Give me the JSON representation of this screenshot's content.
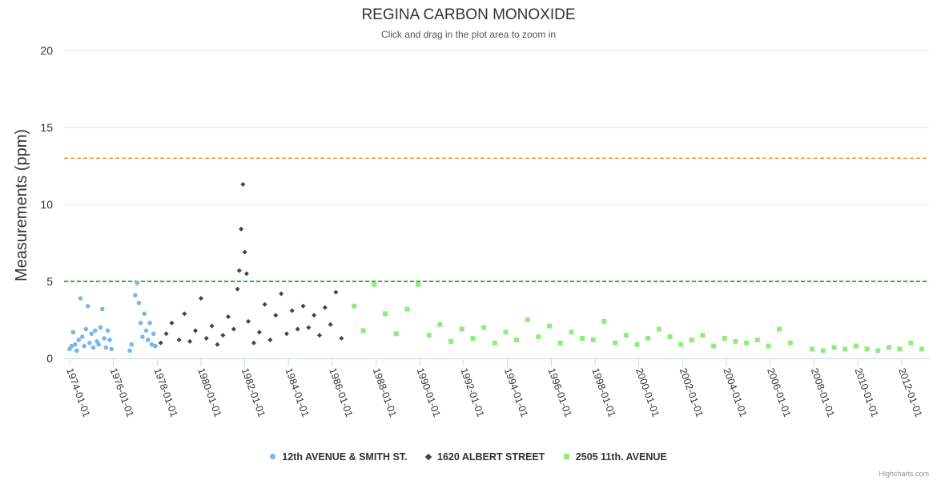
{
  "header": {
    "title": "REGINA CARBON MONOXIDE",
    "subtitle": "Click and drag in the plot area to zoom in"
  },
  "credit": "Highcharts.com",
  "chart_data": {
    "type": "scatter",
    "title": "REGINA CARBON MONOXIDE",
    "subtitle": "Click and drag in the plot area to zoom in",
    "xlabel": "",
    "ylabel": "Measurements (ppm)",
    "ylim": [
      0,
      20
    ],
    "yticks": [
      0,
      5,
      10,
      15,
      20
    ],
    "xlim": [
      "1973-10-01",
      "2013-04-01"
    ],
    "xticks": [
      "1974-01-01",
      "1976-01-01",
      "1978-01-01",
      "1980-01-01",
      "1982-01-01",
      "1984-01-01",
      "1986-01-01",
      "1988-01-01",
      "1990-01-01",
      "1992-01-01",
      "1994-01-01",
      "1996-01-01",
      "1998-01-01",
      "2000-01-01",
      "2002-01-01",
      "2004-01-01",
      "2006-01-01",
      "2008-01-01",
      "2010-01-01",
      "2012-01-01"
    ],
    "grid": true,
    "legend_position": "bottom-center",
    "reference_lines": [
      {
        "y": 13,
        "color": "#e3a21a",
        "style": "dashed"
      },
      {
        "y": 5,
        "color": "#1e7b1e",
        "style": "dashed"
      }
    ],
    "series": [
      {
        "name": "12th AVENUE & SMITH ST.",
        "color": "#7cb5ec",
        "marker": "circle",
        "x": [
          "1974-01-01",
          "1974-02-01",
          "1974-03-01",
          "1974-04-01",
          "1974-05-01",
          "1974-06-01",
          "1974-07-01",
          "1974-08-01",
          "1974-09-01",
          "1974-10-01",
          "1974-11-01",
          "1974-12-01",
          "1975-01-01",
          "1975-02-01",
          "1975-03-01",
          "1975-04-01",
          "1975-05-01",
          "1975-06-01",
          "1975-07-01",
          "1975-08-01",
          "1975-09-01",
          "1975-10-01",
          "1975-11-01",
          "1975-12-01",
          "1976-10-01",
          "1976-11-01",
          "1977-01-01",
          "1977-02-01",
          "1977-03-01",
          "1977-04-01",
          "1977-05-01",
          "1977-06-01",
          "1977-07-01",
          "1977-08-01",
          "1977-09-01",
          "1977-10-01",
          "1977-11-01",
          "1977-12-01"
        ],
        "y": [
          0.6,
          0.8,
          1.7,
          0.9,
          0.5,
          1.2,
          3.9,
          1.4,
          0.8,
          1.9,
          3.4,
          1.0,
          1.6,
          0.7,
          1.8,
          1.1,
          0.9,
          2.0,
          3.2,
          1.3,
          0.7,
          1.8,
          1.2,
          0.6,
          0.5,
          0.9,
          4.1,
          4.9,
          3.6,
          2.3,
          1.4,
          2.9,
          1.8,
          1.2,
          2.3,
          0.9,
          1.6,
          0.8
        ]
      },
      {
        "name": "1620 ALBERT STREET",
        "color": "#434348",
        "marker": "diamond",
        "x": [
          "1978-03-01",
          "1978-06-01",
          "1978-09-01",
          "1979-01-01",
          "1979-04-01",
          "1979-07-01",
          "1979-10-01",
          "1980-01-01",
          "1980-04-01",
          "1980-07-01",
          "1980-10-01",
          "1981-01-01",
          "1981-04-01",
          "1981-07-01",
          "1981-09-01",
          "1981-10-01",
          "1981-11-01",
          "1981-12-01",
          "1982-01-01",
          "1982-02-01",
          "1982-03-01",
          "1982-06-01",
          "1982-09-01",
          "1982-12-01",
          "1983-03-01",
          "1983-06-01",
          "1983-09-01",
          "1983-12-01",
          "1984-03-01",
          "1984-06-01",
          "1984-09-01",
          "1984-12-01",
          "1985-03-01",
          "1985-06-01",
          "1985-09-01",
          "1985-12-01",
          "1986-03-01",
          "1986-06-01"
        ],
        "y": [
          1.0,
          1.6,
          2.3,
          1.2,
          2.9,
          1.1,
          1.8,
          3.9,
          1.3,
          2.1,
          0.9,
          1.5,
          2.7,
          1.9,
          4.5,
          5.7,
          8.4,
          11.3,
          6.9,
          5.5,
          2.4,
          1.0,
          1.7,
          3.5,
          1.2,
          2.8,
          4.2,
          1.6,
          3.1,
          1.9,
          3.4,
          2.0,
          2.8,
          1.5,
          3.3,
          2.2,
          4.3,
          1.3
        ]
      },
      {
        "name": "2505 11th. AVENUE",
        "color": "#90ed7d",
        "marker": "square",
        "x": [
          "1987-01-01",
          "1987-06-01",
          "1987-12-01",
          "1988-06-01",
          "1988-12-01",
          "1989-06-01",
          "1989-12-01",
          "1990-06-01",
          "1990-12-01",
          "1991-06-01",
          "1991-12-01",
          "1992-06-01",
          "1992-12-01",
          "1993-06-01",
          "1993-12-01",
          "1994-06-01",
          "1994-12-01",
          "1995-06-01",
          "1995-12-01",
          "1996-06-01",
          "1996-12-01",
          "1997-06-01",
          "1997-12-01",
          "1998-06-01",
          "1998-12-01",
          "1999-06-01",
          "1999-12-01",
          "2000-06-01",
          "2000-12-01",
          "2001-06-01",
          "2001-12-01",
          "2002-06-01",
          "2002-12-01",
          "2003-06-01",
          "2003-12-01",
          "2004-06-01",
          "2004-12-01",
          "2005-06-01",
          "2005-12-01",
          "2006-06-01",
          "2006-12-01",
          "2007-12-01",
          "2008-06-01",
          "2008-12-01",
          "2009-06-01",
          "2009-12-01",
          "2010-06-01",
          "2010-12-01",
          "2011-06-01",
          "2011-12-01",
          "2012-06-01",
          "2012-12-01"
        ],
        "y": [
          3.4,
          1.8,
          4.8,
          2.9,
          1.6,
          3.2,
          4.8,
          1.5,
          2.2,
          1.1,
          1.9,
          1.3,
          2.0,
          1.0,
          1.7,
          1.2,
          2.5,
          1.4,
          2.1,
          1.0,
          1.7,
          1.3,
          1.2,
          2.4,
          1.0,
          1.5,
          0.9,
          1.3,
          1.9,
          1.4,
          0.9,
          1.2,
          1.5,
          0.8,
          1.3,
          1.1,
          1.0,
          1.2,
          0.8,
          1.9,
          1.0,
          0.6,
          0.5,
          0.7,
          0.6,
          0.8,
          0.6,
          0.5,
          0.7,
          0.6,
          1.0,
          0.6
        ]
      }
    ]
  }
}
